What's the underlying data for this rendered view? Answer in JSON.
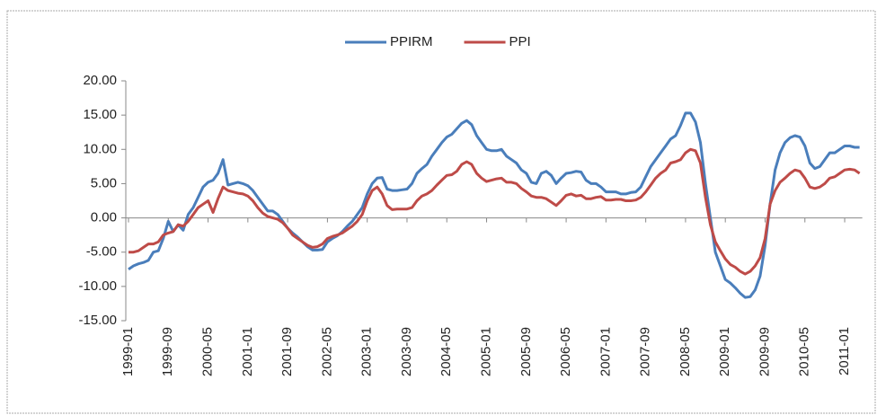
{
  "chart_data": {
    "type": "line",
    "categories": [
      "1999-01",
      null,
      null,
      null,
      null,
      null,
      null,
      null,
      "1999-09",
      null,
      null,
      null,
      null,
      null,
      null,
      null,
      "2000-05",
      null,
      null,
      null,
      null,
      null,
      null,
      null,
      "2001-01",
      null,
      null,
      null,
      null,
      null,
      null,
      null,
      "2001-09",
      null,
      null,
      null,
      null,
      null,
      null,
      null,
      "2002-05",
      null,
      null,
      null,
      null,
      null,
      null,
      null,
      "2003-01",
      null,
      null,
      null,
      null,
      null,
      null,
      null,
      "2003-09",
      null,
      null,
      null,
      null,
      null,
      null,
      null,
      "2004-05",
      null,
      null,
      null,
      null,
      null,
      null,
      null,
      "2005-01",
      null,
      null,
      null,
      null,
      null,
      null,
      null,
      "2005-09",
      null,
      null,
      null,
      null,
      null,
      null,
      null,
      "2006-05",
      null,
      null,
      null,
      null,
      null,
      null,
      null,
      "2007-01",
      null,
      null,
      null,
      null,
      null,
      null,
      null,
      "2007-09",
      null,
      null,
      null,
      null,
      null,
      null,
      null,
      "2008-05",
      null,
      null,
      null,
      null,
      null,
      null,
      null,
      "2009-01",
      null,
      null,
      null,
      null,
      null,
      null,
      null,
      "2009-09",
      null,
      null,
      null,
      null,
      null,
      null,
      null,
      "2010-05",
      null,
      null,
      null,
      null,
      null,
      null,
      null,
      "2011-01",
      null,
      null,
      null
    ],
    "series": [
      {
        "name": "PPIRM",
        "color": "#4a7ebb",
        "values": [
          -7.5,
          -7,
          -6.7,
          -6.5,
          -6.2,
          -5,
          -4.8,
          -3,
          -0.5,
          -2,
          -1,
          -1.8,
          0.5,
          1.5,
          3,
          4.5,
          5.2,
          5.5,
          6.5,
          8.5,
          4.8,
          5,
          5.2,
          5,
          4.7,
          4,
          3,
          2,
          1,
          1,
          0.5,
          -0.5,
          -1.5,
          -2.2,
          -2.8,
          -3.5,
          -4.2,
          -4.7,
          -4.7,
          -4.6,
          -3.5,
          -3,
          -2.6,
          -2,
          -1.2,
          -0.5,
          0.5,
          1.5,
          3.5,
          5,
          5.8,
          5.9,
          4.2,
          4,
          4,
          4.1,
          4.2,
          5,
          6.5,
          7.2,
          7.8,
          9,
          10,
          11,
          11.8,
          12.2,
          13,
          13.8,
          14.2,
          13.6,
          12,
          11,
          10,
          9.8,
          9.8,
          10,
          9,
          8.5,
          8,
          7,
          6.5,
          5.2,
          5,
          6.5,
          6.8,
          6.2,
          5,
          5.8,
          6.5,
          6.6,
          6.8,
          6.7,
          5.5,
          5,
          5,
          4.5,
          3.8,
          3.8,
          3.8,
          3.5,
          3.5,
          3.7,
          3.8,
          4.5,
          6,
          7.5,
          8.5,
          9.5,
          10.5,
          11.5,
          12,
          13.5,
          15.3,
          15.3,
          14,
          11,
          5,
          0,
          -5,
          -7,
          -9,
          -9.5,
          -10.2,
          -11,
          -11.6,
          -11.5,
          -10.5,
          -8.5,
          -4,
          2,
          7,
          9.5,
          11,
          11.7,
          12,
          11.8,
          10.5,
          8,
          7.2,
          7.5,
          8.5,
          9.5,
          9.5,
          10,
          10.5,
          10.5,
          10.3,
          10.3
        ]
      },
      {
        "name": "PPI",
        "color": "#be4b48",
        "values": [
          -5,
          -5,
          -4.8,
          -4.3,
          -3.8,
          -3.8,
          -3.5,
          -2.5,
          -2.2,
          -2,
          -1,
          -1.2,
          -0.5,
          0.5,
          1.5,
          2,
          2.5,
          0.8,
          2.8,
          4.5,
          4,
          3.8,
          3.6,
          3.5,
          3.2,
          2.5,
          1.5,
          0.7,
          0.2,
          0,
          -0.2,
          -0.7,
          -1.5,
          -2.5,
          -3,
          -3.5,
          -4,
          -4.3,
          -4.2,
          -3.8,
          -3,
          -2.7,
          -2.5,
          -2.2,
          -1.7,
          -1.2,
          -0.5,
          0.5,
          2.5,
          4,
          4.5,
          3.5,
          1.8,
          1.2,
          1.3,
          1.3,
          1.3,
          1.5,
          2.5,
          3.2,
          3.5,
          4,
          4.8,
          5.5,
          6.2,
          6.3,
          6.8,
          7.8,
          8.2,
          7.8,
          6.5,
          5.8,
          5.3,
          5.5,
          5.7,
          5.8,
          5.2,
          5.2,
          5,
          4.3,
          3.8,
          3.2,
          3,
          3,
          2.8,
          2.3,
          1.8,
          2.5,
          3.3,
          3.5,
          3.2,
          3.3,
          2.8,
          2.8,
          3,
          3.1,
          2.6,
          2.6,
          2.7,
          2.7,
          2.5,
          2.5,
          2.6,
          3,
          3.8,
          4.8,
          5.8,
          6.5,
          7,
          8,
          8.2,
          8.5,
          9.5,
          10,
          9.8,
          8,
          3,
          -1,
          -3.5,
          -4.8,
          -6,
          -6.8,
          -7.2,
          -7.8,
          -8.2,
          -7.8,
          -7,
          -5.8,
          -3,
          2,
          4,
          5.2,
          5.8,
          6.5,
          7,
          6.8,
          5.8,
          4.5,
          4.3,
          4.5,
          5,
          5.8,
          6,
          6.5,
          7,
          7.1,
          7,
          6.5
        ]
      }
    ],
    "ylim": [
      -15,
      20
    ],
    "yticks": [
      {
        "value": -15,
        "label": "-15.00"
      },
      {
        "value": -10,
        "label": "-10.00"
      },
      {
        "value": -5,
        "label": "-5.00"
      },
      {
        "value": 0,
        "label": "0.00"
      },
      {
        "value": 5,
        "label": "5.00"
      },
      {
        "value": 10,
        "label": "10.00"
      },
      {
        "value": 15,
        "label": "15.00"
      },
      {
        "value": 20,
        "label": "20.00"
      }
    ],
    "legend": "top"
  }
}
